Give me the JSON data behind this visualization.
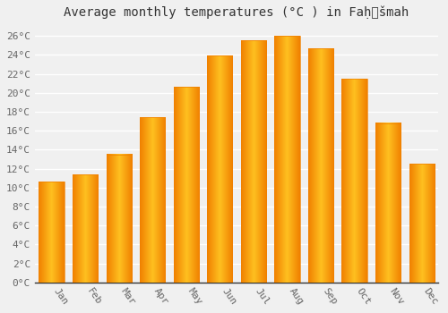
{
  "months": [
    "Jan",
    "Feb",
    "Mar",
    "Apr",
    "May",
    "Jun",
    "Jul",
    "Aug",
    "Sep",
    "Oct",
    "Nov",
    "Dec"
  ],
  "temperatures": [
    10.6,
    11.4,
    13.5,
    17.4,
    20.6,
    23.9,
    25.5,
    26.0,
    24.7,
    21.5,
    16.8,
    12.5
  ],
  "bar_color_center": "#FFC020",
  "bar_color_edge": "#F08000",
  "title": "Average monthly temperatures (°C ) in Faḥ͜šmah",
  "ylim": [
    0,
    27
  ],
  "ytick_step": 2,
  "background_color": "#f0f0f0",
  "plot_bg_color": "#f0f0f0",
  "grid_color": "#ffffff",
  "title_fontsize": 10,
  "tick_fontsize": 8,
  "font_family": "monospace",
  "bar_width": 0.75
}
